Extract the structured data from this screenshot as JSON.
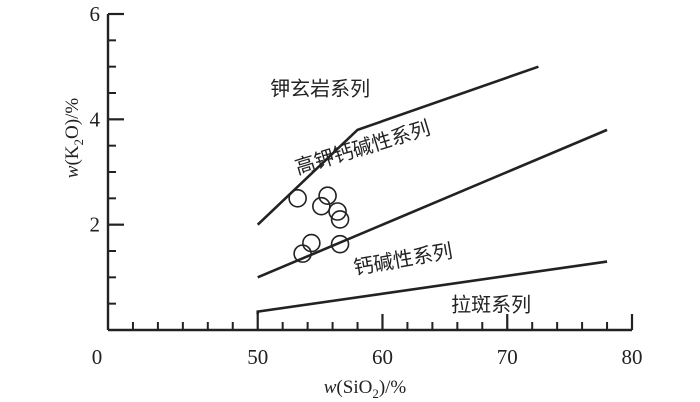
{
  "chart_data": {
    "type": "scatter",
    "title": "",
    "xlabel": {
      "prefix": "w",
      "open": "(SiO",
      "sub": "2",
      "close": ")/%"
    },
    "ylabel": {
      "prefix": "w",
      "open": "(K",
      "sub": "2",
      "close": "O)/%"
    },
    "xlim": [
      38,
      80
    ],
    "ylim": [
      0,
      6
    ],
    "origin_label": "0",
    "x_ticks": [
      50,
      60,
      70,
      80
    ],
    "x_minor_ticks": [
      40,
      42,
      44,
      46,
      48,
      52,
      54,
      56,
      58,
      62,
      64,
      66,
      68,
      72,
      74,
      76,
      78
    ],
    "y_ticks": [
      2,
      4,
      6
    ],
    "y_minor_ticks": [
      0.5,
      1,
      1.5,
      2.5,
      3,
      3.5,
      4.5,
      5,
      5.5
    ],
    "boundary_lines": [
      {
        "name": "high-k-upper",
        "points": [
          [
            50,
            2.0
          ],
          [
            58,
            3.8
          ],
          [
            72.5,
            5.0
          ]
        ]
      },
      {
        "name": "calc-alkaline-upper",
        "points": [
          [
            50,
            1.0
          ],
          [
            78,
            3.8
          ]
        ]
      },
      {
        "name": "calc-alkaline-lower",
        "points": [
          [
            50,
            0.3
          ],
          [
            50,
            0.35
          ],
          [
            78,
            1.3
          ]
        ]
      }
    ],
    "series_labels": [
      {
        "text": "钾玄岩系列",
        "x": 51,
        "y": 4.45,
        "angle": 0
      },
      {
        "text": "高钾钙碱性系列",
        "x": 53.2,
        "y": 2.95,
        "angle": -17
      },
      {
        "text": "钙碱性系列",
        "x": 57.8,
        "y": 1.05,
        "angle": -10
      },
      {
        "text": "拉斑系列",
        "x": 65.5,
        "y": 0.35,
        "angle": 0
      }
    ],
    "points": [
      {
        "x": 53.2,
        "y": 2.5
      },
      {
        "x": 55.6,
        "y": 2.55
      },
      {
        "x": 55.1,
        "y": 2.35
      },
      {
        "x": 56.4,
        "y": 2.25
      },
      {
        "x": 56.6,
        "y": 2.1
      },
      {
        "x": 54.3,
        "y": 1.65
      },
      {
        "x": 53.6,
        "y": 1.45
      },
      {
        "x": 56.6,
        "y": 1.63
      }
    ]
  }
}
